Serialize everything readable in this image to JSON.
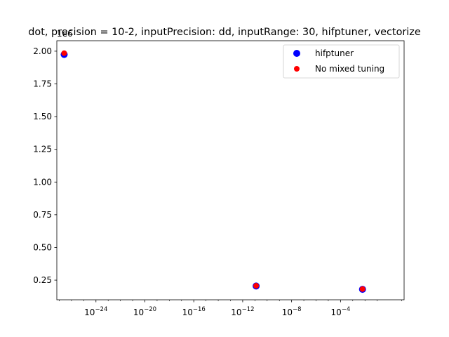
{
  "chart_data": {
    "type": "scatter",
    "title": "dot, precision = 10-2, inputPrecision: dd, inputRange: 30, hifptuner, vectorize",
    "xlabel": "",
    "ylabel": "",
    "xscale": "log",
    "xlim_exp": [
      -27.2,
      1.2
    ],
    "ylim": [
      0.1,
      2.08
    ],
    "y_offset_label": "1e6",
    "x_ticks": [
      {
        "exp": -24,
        "label": "10^-24"
      },
      {
        "exp": -20,
        "label": "10^-20"
      },
      {
        "exp": -16,
        "label": "10^-16"
      },
      {
        "exp": -12,
        "label": "10^-12"
      },
      {
        "exp": -8,
        "label": "10^-8"
      },
      {
        "exp": -4,
        "label": "10^-4"
      }
    ],
    "y_ticks": [
      0.25,
      0.5,
      0.75,
      1.0,
      1.25,
      1.5,
      1.75,
      2.0
    ],
    "y_tick_labels": [
      "0.25",
      "0.50",
      "0.75",
      "1.00",
      "1.25",
      "1.50",
      "1.75",
      "2.00"
    ],
    "series": [
      {
        "name": "hifptuner",
        "color": "#0000ff",
        "marker_size": "large",
        "points": [
          {
            "x_exp": -26.6,
            "y": 1.975
          },
          {
            "x_exp": -10.9,
            "y": 0.205
          },
          {
            "x_exp": -2.2,
            "y": 0.18
          }
        ]
      },
      {
        "name": "No mixed tuning",
        "color": "#ff0000",
        "marker_size": "small",
        "points": [
          {
            "x_exp": -26.6,
            "y": 1.985
          },
          {
            "x_exp": -10.9,
            "y": 0.207
          },
          {
            "x_exp": -2.2,
            "y": 0.182
          }
        ]
      }
    ],
    "legend_position": "upper right"
  }
}
